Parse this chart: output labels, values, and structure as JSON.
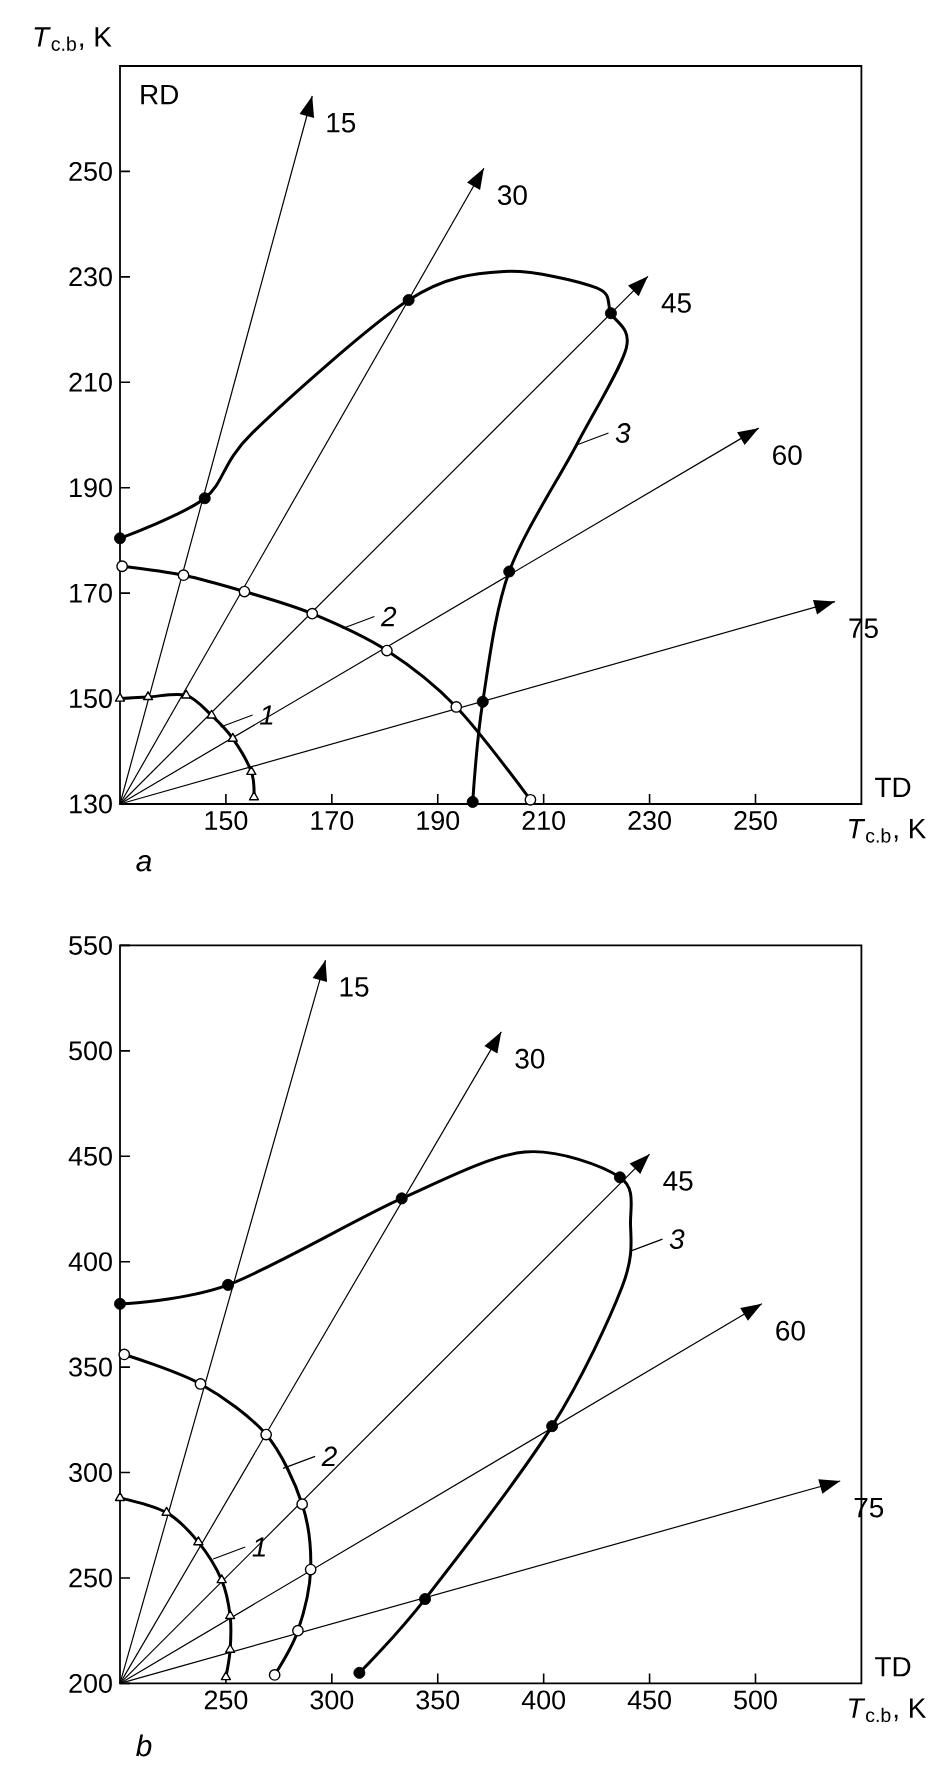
{
  "chart_data": [
    {
      "type": "line",
      "subtitle": "a",
      "xlabel": "*T*$_{c.b}$, K",
      "ylabel": "*T*$_{c.b}$, K",
      "xlim": [
        130,
        270
      ],
      "ylim": [
        130,
        270
      ],
      "xticks": [
        150,
        170,
        190,
        210,
        230,
        250
      ],
      "yticks": [
        130,
        150,
        170,
        190,
        210,
        230,
        250
      ],
      "grid": false,
      "annotations": [
        "RD",
        "TD",
        {
          "text": "1",
          "x": 149,
          "y": 144.6
        },
        {
          "text": "2",
          "x": 172,
          "y": 163.3
        },
        {
          "text": "3",
          "x": 216.2,
          "y": 198.1
        },
        {
          "text": "15",
          "x": 166.3,
          "y": 264.3
        },
        {
          "text": "30",
          "x": 198.7,
          "y": 250.6
        },
        {
          "text": "45",
          "x": 229.7,
          "y": 230.1
        },
        {
          "text": "60",
          "x": 250.6,
          "y": 201.3
        },
        {
          "text": "75",
          "x": 265,
          "y": 168.4
        }
      ],
      "series": [
        {
          "color": "#000000",
          "x": [
            130,
            166.3
          ],
          "values": [
            130,
            264.3
          ]
        },
        {
          "color": "#000000",
          "x": [
            130,
            198.7
          ],
          "values": [
            130,
            250.6
          ]
        },
        {
          "color": "#000000",
          "x": [
            130,
            229.7
          ],
          "values": [
            130,
            230.1
          ]
        },
        {
          "color": "#000000",
          "x": [
            130,
            250.6
          ],
          "values": [
            130,
            201.3
          ]
        },
        {
          "color": "#000000",
          "x": [
            130,
            265
          ],
          "values": [
            130,
            168.4
          ]
        },
        {
          "color": "#000000",
          "marker": "triangle",
          "x": [
            130,
            135.3,
            142.5,
            147.3,
            151.3,
            154.8,
            155.3
          ],
          "values": [
            150,
            150.3,
            150.6,
            146.8,
            142.4,
            136.1,
            131.3
          ]
        },
        {
          "color": "#000000",
          "marker": "circle",
          "x": [
            130.4,
            142,
            153.5,
            166.3,
            180.4,
            193.5,
            207.5
          ],
          "values": [
            175.1,
            173.4,
            170.3,
            166.1,
            159.1,
            148.4,
            130.8
          ]
        },
        {
          "color": "#000000",
          "x": [
            130,
            146,
            155,
            184.5,
            202.5,
            220,
            222.7,
            225.6,
            216.2,
            203.5,
            198.5,
            196.6
          ],
          "values": [
            180.4,
            188,
            200.4,
            225.6,
            231,
            227.9,
            223.1,
            216.5,
            198.1,
            174.1,
            149.4,
            130.4
          ]
        },
        {
          "type": "scatter",
          "color": "#000000",
          "marker": "circle",
          "x": [
            130,
            146,
            184.5,
            222.7,
            203.5,
            198.5,
            196.6
          ],
          "values": [
            180.4,
            188,
            225.6,
            223.1,
            174.1,
            149.4,
            130.4
          ]
        }
      ]
    },
    {
      "type": "line",
      "subtitle": "b",
      "xlabel": "*T*$_{c.b}$, K",
      "xlim": [
        200,
        550
      ],
      "ylim": [
        200,
        550
      ],
      "xticks": [
        250,
        300,
        350,
        400,
        450,
        500
      ],
      "yticks": [
        200,
        250,
        300,
        350,
        400,
        450,
        500,
        550
      ],
      "grid": false,
      "annotations": [
        "TD",
        {
          "text": "1",
          "x": 244,
          "y": 259
        },
        {
          "text": "2",
          "x": 277,
          "y": 302
        },
        {
          "text": "3",
          "x": 441,
          "y": 405
        },
        {
          "text": "15",
          "x": 297,
          "y": 543
        },
        {
          "text": "30",
          "x": 380,
          "y": 509
        },
        {
          "text": "45",
          "x": 450,
          "y": 451
        },
        {
          "text": "60",
          "x": 503,
          "y": 380
        },
        {
          "text": "75",
          "x": 540,
          "y": 296
        }
      ],
      "series": [
        {
          "color": "#000000",
          "x": [
            200,
            297
          ],
          "values": [
            200,
            543
          ]
        },
        {
          "color": "#000000",
          "x": [
            200,
            380
          ],
          "values": [
            200,
            509
          ]
        },
        {
          "color": "#000000",
          "x": [
            200,
            450
          ],
          "values": [
            200,
            451
          ]
        },
        {
          "color": "#000000",
          "x": [
            200,
            503
          ],
          "values": [
            200,
            380
          ]
        },
        {
          "color": "#000000",
          "x": [
            200,
            540
          ],
          "values": [
            200,
            296
          ]
        },
        {
          "color": "#000000",
          "marker": "triangle",
          "x": [
            200,
            222,
            237,
            248,
            252,
            252,
            250
          ],
          "values": [
            288,
            281,
            267,
            249,
            232,
            216,
            203
          ]
        },
        {
          "color": "#000000",
          "marker": "circle",
          "x": [
            202,
            238,
            269,
            286,
            290,
            284,
            273
          ],
          "values": [
            356,
            342,
            318,
            285,
            254,
            225,
            204
          ]
        },
        {
          "color": "#000000",
          "x": [
            200,
            251,
            333,
            391,
            436,
            441,
            437,
            404,
            344,
            313
          ],
          "values": [
            380,
            389,
            430,
            452,
            440,
            418,
            388,
            322,
            240,
            205
          ]
        },
        {
          "type": "scatter",
          "color": "#000000",
          "marker": "circle",
          "x": [
            200,
            251,
            333,
            436,
            404,
            344,
            313
          ],
          "values": [
            380,
            389,
            430,
            440,
            322,
            240,
            205
          ]
        }
      ]
    }
  ]
}
